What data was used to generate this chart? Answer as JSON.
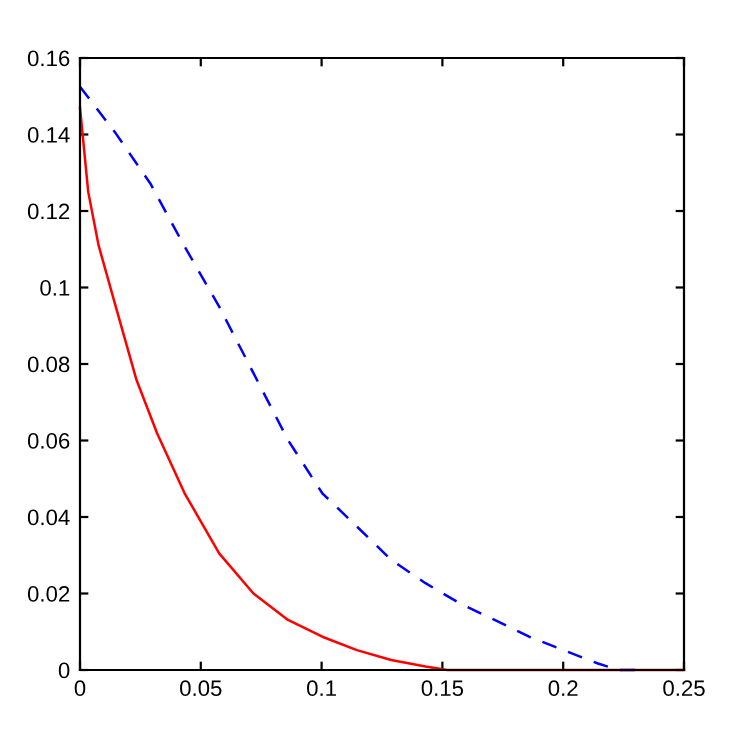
{
  "chart_data": {
    "type": "line",
    "series": [
      {
        "color": "#ff0000",
        "line_style": "solid",
        "x": [
          0,
          0.0034,
          0.0077,
          0.0148,
          0.0234,
          0.0319,
          0.0433,
          0.0576,
          0.0718,
          0.0861,
          0.1003,
          0.1146,
          0.1288,
          0.143,
          0.152,
          0.25
        ],
        "values": [
          0.147,
          0.125,
          0.111,
          0.095,
          0.0758,
          0.0619,
          0.0462,
          0.0305,
          0.02,
          0.0131,
          0.0087,
          0.0052,
          0.0026,
          0.0009,
          0,
          0
        ]
      },
      {
        "color": "#0000ff",
        "line_style": "dashed",
        "x": [
          0,
          0.0148,
          0.0291,
          0.0433,
          0.0576,
          0.0718,
          0.0861,
          0.1003,
          0.1146,
          0.1288,
          0.143,
          0.1573,
          0.1716,
          0.1859,
          0.2001,
          0.2144,
          0.223,
          0.23
        ],
        "values": [
          0.1525,
          0.1403,
          0.1272,
          0.1107,
          0.095,
          0.0776,
          0.0601,
          0.0462,
          0.0375,
          0.0288,
          0.0227,
          0.0174,
          0.0131,
          0.0087,
          0.0052,
          0.0017,
          0,
          0
        ]
      }
    ],
    "xlim": [
      0,
      0.25
    ],
    "ylim": [
      0,
      0.16
    ],
    "xticks": [
      0,
      0.05,
      0.1,
      0.15,
      0.2,
      0.25
    ],
    "yticks": [
      0,
      0.02,
      0.04,
      0.06,
      0.08,
      0.1,
      0.12,
      0.14,
      0.16
    ],
    "grid": false
  }
}
